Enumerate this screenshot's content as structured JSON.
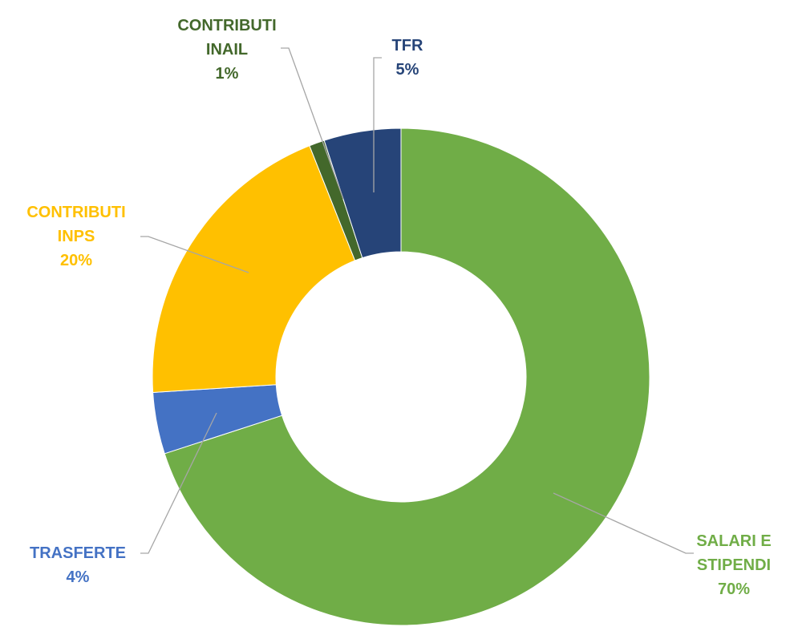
{
  "chart_data": {
    "type": "donut",
    "categories": [
      "SALARI E STIPENDI",
      "TRASFERTE",
      "CONTRIBUTI INPS",
      "CONTRIBUTI INAIL",
      "TFR"
    ],
    "values": [
      70,
      4,
      20,
      1,
      5
    ],
    "value_labels": [
      "70%",
      "4%",
      "20%",
      "1%",
      "5%"
    ],
    "colors": [
      "#70ad47",
      "#4472c4",
      "#ffc000",
      "#43682b",
      "#264478"
    ]
  }
}
